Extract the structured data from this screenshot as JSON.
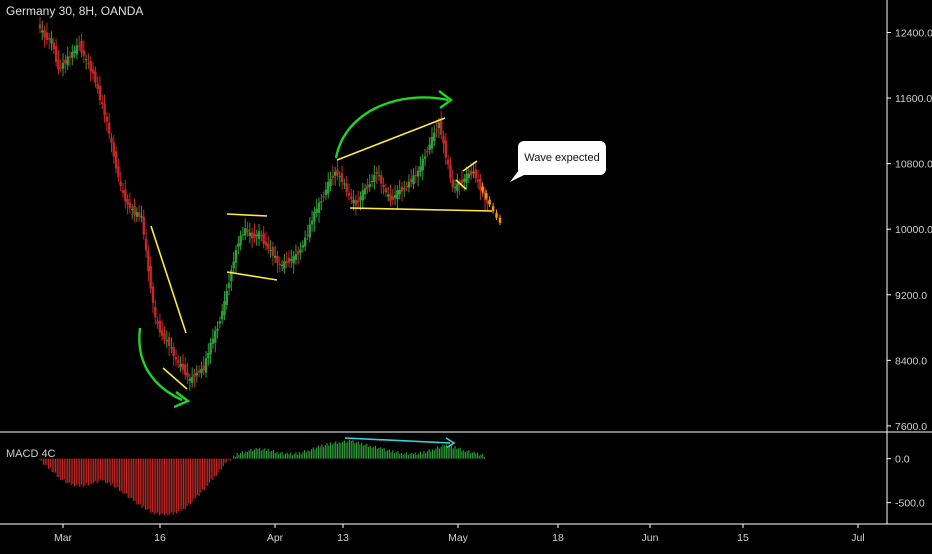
{
  "chart_title": "Germany 30, 8H, OANDA",
  "indicator_label": "MACD 4C",
  "annotation": "Wave expected",
  "colors": {
    "up": "#26a69a",
    "up_candle": "#2e9e3a",
    "down": "#c62828",
    "projection": "#ff9800",
    "trend_line": "#ffeb3b",
    "arrow": "#22d422",
    "macd_arrow": "#3fd0e0",
    "axis_text": "#d0d0d0",
    "axis_line": "#ffffff"
  },
  "chart_data": [
    {
      "type": "candlestick",
      "title": "Germany 30, 8H, OANDA",
      "price_ticks": [
        "12400.0",
        "11600.0",
        "10800.0",
        "10000.0",
        "9200.0",
        "8400.0",
        "7600.0"
      ],
      "time_ticks": [
        "Mar",
        "16",
        "Apr",
        "13",
        "May",
        "18",
        "Jun",
        "15",
        "Jul"
      ],
      "ylim": [
        7550,
        12650
      ],
      "series_close": [
        [
          0,
          12500
        ],
        [
          4,
          12350
        ],
        [
          8,
          12300
        ],
        [
          12,
          11950
        ],
        [
          16,
          12050
        ],
        [
          20,
          12150
        ],
        [
          24,
          12250
        ],
        [
          28,
          12050
        ],
        [
          32,
          11900
        ],
        [
          36,
          11600
        ],
        [
          40,
          11300
        ],
        [
          44,
          10900
        ],
        [
          48,
          10500
        ],
        [
          52,
          10300
        ],
        [
          56,
          10200
        ],
        [
          60,
          10150
        ],
        [
          64,
          9500
        ],
        [
          68,
          8900
        ],
        [
          72,
          8700
        ],
        [
          76,
          8600
        ],
        [
          80,
          8400
        ],
        [
          84,
          8300
        ],
        [
          88,
          8150
        ],
        [
          92,
          8250
        ],
        [
          96,
          8300
        ],
        [
          100,
          8600
        ],
        [
          104,
          8800
        ],
        [
          108,
          9100
        ],
        [
          112,
          9500
        ],
        [
          116,
          9850
        ],
        [
          120,
          10000
        ],
        [
          124,
          9900
        ],
        [
          128,
          9950
        ],
        [
          132,
          9800
        ],
        [
          136,
          9700
        ],
        [
          140,
          9550
        ],
        [
          144,
          9600
        ],
        [
          148,
          9650
        ],
        [
          152,
          9750
        ],
        [
          156,
          9950
        ],
        [
          160,
          10200
        ],
        [
          164,
          10350
        ],
        [
          168,
          10550
        ],
        [
          172,
          10700
        ],
        [
          176,
          10600
        ],
        [
          180,
          10400
        ],
        [
          184,
          10300
        ],
        [
          188,
          10450
        ],
        [
          192,
          10550
        ],
        [
          196,
          10700
        ],
        [
          200,
          10500
        ],
        [
          204,
          10350
        ],
        [
          208,
          10450
        ],
        [
          212,
          10500
        ],
        [
          216,
          10600
        ],
        [
          220,
          10700
        ],
        [
          224,
          10900
        ],
        [
          228,
          11100
        ],
        [
          232,
          11300
        ],
        [
          236,
          10900
        ],
        [
          240,
          10500
        ],
        [
          244,
          10550
        ],
        [
          248,
          10650
        ],
        [
          252,
          10700
        ],
        [
          256,
          10500
        ],
        [
          260,
          10300
        ]
      ],
      "projection": [
        [
          256,
          10500
        ],
        [
          258,
          10420
        ],
        [
          260,
          10340
        ],
        [
          262,
          10260
        ],
        [
          264,
          10180
        ],
        [
          266,
          10120
        ]
      ],
      "annotations": [
        {
          "kind": "trend-line",
          "note": "falling wedge"
        },
        {
          "kind": "rectangle",
          "note": "consolidation"
        },
        {
          "kind": "rising-trend-line",
          "note": "to May high"
        },
        {
          "kind": "support-line",
          "note": "near 10150"
        },
        {
          "kind": "curved-arrow",
          "note": "rebound"
        },
        {
          "kind": "curved-arrow",
          "note": "rally"
        },
        {
          "kind": "callout",
          "text": "Wave expected"
        }
      ]
    },
    {
      "type": "bar",
      "title": "MACD 4C",
      "y_ticks": [
        "0.0",
        "-500.0"
      ],
      "ylim": [
        -720,
        280
      ],
      "values_by_time": [
        [
          0,
          -20
        ],
        [
          6,
          -120
        ],
        [
          12,
          -230
        ],
        [
          18,
          -300
        ],
        [
          24,
          -310
        ],
        [
          30,
          -280
        ],
        [
          36,
          -250
        ],
        [
          42,
          -300
        ],
        [
          48,
          -380
        ],
        [
          54,
          -480
        ],
        [
          60,
          -560
        ],
        [
          66,
          -620
        ],
        [
          72,
          -640
        ],
        [
          78,
          -620
        ],
        [
          84,
          -560
        ],
        [
          90,
          -450
        ],
        [
          96,
          -320
        ],
        [
          102,
          -180
        ],
        [
          108,
          -40
        ],
        [
          114,
          50
        ],
        [
          120,
          90
        ],
        [
          126,
          110
        ],
        [
          132,
          100
        ],
        [
          138,
          70
        ],
        [
          144,
          50
        ],
        [
          150,
          60
        ],
        [
          156,
          100
        ],
        [
          162,
          140
        ],
        [
          168,
          170
        ],
        [
          174,
          190
        ],
        [
          180,
          200
        ],
        [
          186,
          170
        ],
        [
          192,
          140
        ],
        [
          198,
          110
        ],
        [
          204,
          80
        ],
        [
          210,
          60
        ],
        [
          216,
          50
        ],
        [
          222,
          70
        ],
        [
          228,
          110
        ],
        [
          234,
          150
        ],
        [
          240,
          130
        ],
        [
          246,
          90
        ],
        [
          252,
          60
        ],
        [
          258,
          30
        ]
      ]
    }
  ]
}
